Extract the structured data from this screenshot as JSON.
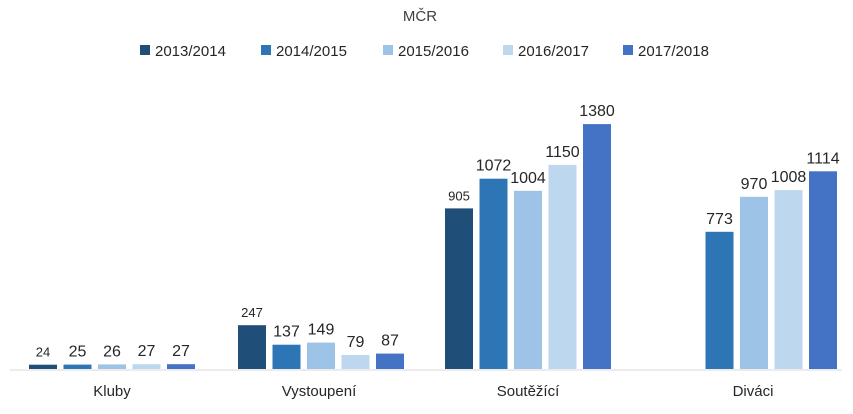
{
  "chart_data": {
    "type": "bar",
    "title": "MČR",
    "categories": [
      "Kluby",
      "Vystoupení",
      "Soutěžící",
      "Diváci"
    ],
    "series": [
      {
        "name": "2013/2014",
        "color": "#1f4e79",
        "values": [
          24,
          247,
          905,
          null
        ]
      },
      {
        "name": "2014/2015",
        "color": "#2e75b6",
        "values": [
          25,
          137,
          1072,
          773
        ]
      },
      {
        "name": "2015/2016",
        "color": "#9dc3e6",
        "values": [
          26,
          149,
          1004,
          970
        ]
      },
      {
        "name": "2016/2017",
        "color": "#bdd7ee",
        "values": [
          27,
          79,
          1150,
          1008
        ]
      },
      {
        "name": "2017/2018",
        "color": "#4472c4",
        "values": [
          27,
          87,
          1380,
          1114
        ]
      }
    ],
    "ylim": [
      0,
      1400
    ],
    "legend_position": "top",
    "grid": false
  }
}
